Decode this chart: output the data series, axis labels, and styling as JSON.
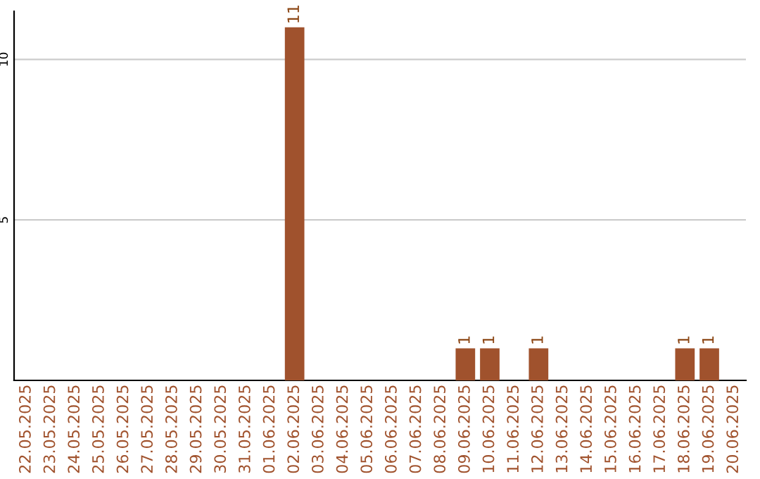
{
  "chart_data": {
    "type": "bar",
    "categories": [
      "22.05.2025",
      "23.05.2025",
      "24.05.2025",
      "25.05.2025",
      "26.05.2025",
      "27.05.2025",
      "28.05.2025",
      "29.05.2025",
      "30.05.2025",
      "31.05.2025",
      "01.06.2025",
      "02.06.2025",
      "03.06.2025",
      "04.06.2025",
      "05.06.2025",
      "06.06.2025",
      "07.06.2025",
      "08.06.2025",
      "09.06.2025",
      "10.06.2025",
      "11.06.2025",
      "12.06.2025",
      "13.06.2025",
      "14.06.2025",
      "15.06.2025",
      "16.06.2025",
      "17.06.2025",
      "18.06.2025",
      "19.06.2025",
      "20.06.2025"
    ],
    "values": [
      0,
      0,
      0,
      0,
      0,
      0,
      0,
      0,
      0,
      0,
      0,
      11,
      0,
      0,
      0,
      0,
      0,
      0,
      1,
      1,
      0,
      1,
      0,
      0,
      0,
      0,
      0,
      1,
      1,
      0
    ],
    "value_labels": [
      null,
      null,
      null,
      null,
      null,
      null,
      null,
      null,
      null,
      null,
      null,
      "11",
      null,
      null,
      null,
      null,
      null,
      null,
      "1",
      "1",
      null,
      "1",
      null,
      null,
      null,
      null,
      null,
      "1",
      "1",
      null
    ],
    "color": "#a0522d",
    "ylim": [
      0,
      11.5
    ],
    "yticks": [
      5,
      10
    ],
    "grid": "y"
  }
}
